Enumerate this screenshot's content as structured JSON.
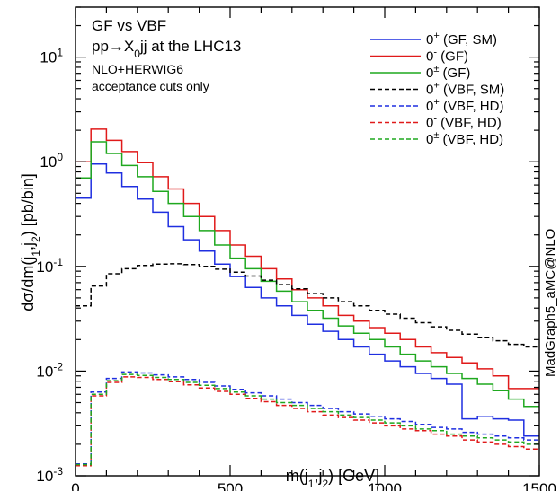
{
  "chart_data": {
    "type": "line",
    "step": true,
    "xlabel": "m(j1,j2)   [GeV]",
    "ylabel": "dσ/dm(j1,j2)   [pb/bin]",
    "xlim": [
      0,
      1500
    ],
    "ylim": [
      0.001,
      30
    ],
    "yscale": "log",
    "xticks": [
      0,
      500,
      1000,
      1500
    ],
    "ytick_labels": [
      "10-3",
      "10-2",
      "10-1",
      "100",
      "101"
    ],
    "annotations": [
      "GF vs VBF",
      "pp→X0jj   at the LHC13",
      "NLO+HERWIG6",
      "acceptance cuts only"
    ],
    "side_label": "MadGraph5_aMC@NLO",
    "legend_placement": "top-right",
    "bin_edges": [
      0,
      50,
      100,
      150,
      200,
      250,
      300,
      350,
      400,
      450,
      500,
      550,
      600,
      650,
      700,
      750,
      800,
      850,
      900,
      950,
      1000,
      1050,
      1100,
      1150,
      1200,
      1250,
      1300,
      1350,
      1400,
      1450,
      1500
    ],
    "series": [
      {
        "name": "0+ (GF, SM)",
        "color": "#1f2fe0",
        "dash": "solid",
        "values": [
          0.45,
          0.95,
          0.78,
          0.58,
          0.44,
          0.33,
          0.24,
          0.18,
          0.14,
          0.105,
          0.08,
          0.063,
          0.05,
          0.042,
          0.034,
          0.028,
          0.024,
          0.02,
          0.017,
          0.0145,
          0.0125,
          0.011,
          0.0095,
          0.0085,
          0.0075,
          0.0035,
          0.0037,
          0.0035,
          0.0034,
          0.0024
        ]
      },
      {
        "name": "0- (GF)",
        "color": "#e01a1a",
        "dash": "solid",
        "values": [
          1.0,
          2.05,
          1.6,
          1.25,
          0.98,
          0.72,
          0.55,
          0.4,
          0.3,
          0.22,
          0.16,
          0.125,
          0.095,
          0.076,
          0.06,
          0.05,
          0.042,
          0.034,
          0.03,
          0.026,
          0.023,
          0.02,
          0.017,
          0.015,
          0.0135,
          0.012,
          0.0105,
          0.009,
          0.0068,
          0.0068
        ]
      },
      {
        "name": "0± (GF)",
        "color": "#1fa81f",
        "dash": "solid",
        "values": [
          0.7,
          1.55,
          1.2,
          0.92,
          0.72,
          0.52,
          0.4,
          0.3,
          0.22,
          0.16,
          0.12,
          0.095,
          0.072,
          0.058,
          0.046,
          0.038,
          0.032,
          0.027,
          0.023,
          0.02,
          0.017,
          0.0145,
          0.0125,
          0.011,
          0.0095,
          0.0085,
          0.0075,
          0.0065,
          0.0054,
          0.0046
        ]
      },
      {
        "name": "0+ (VBF, SM)",
        "color": "#000000",
        "dash": "dashed",
        "values": [
          0.042,
          0.065,
          0.085,
          0.095,
          0.102,
          0.105,
          0.106,
          0.104,
          0.1,
          0.094,
          0.088,
          0.081,
          0.074,
          0.067,
          0.061,
          0.055,
          0.05,
          0.046,
          0.042,
          0.038,
          0.035,
          0.032,
          0.029,
          0.0265,
          0.0245,
          0.0225,
          0.021,
          0.0195,
          0.018,
          0.017
        ]
      },
      {
        "name": "0+ (VBF, HD)",
        "color": "#1f2fe0",
        "dash": "dashed",
        "values": [
          0.0013,
          0.0063,
          0.0085,
          0.0098,
          0.0096,
          0.0092,
          0.0088,
          0.0083,
          0.0078,
          0.0072,
          0.0067,
          0.0062,
          0.0058,
          0.0054,
          0.005,
          0.0047,
          0.0044,
          0.0041,
          0.0039,
          0.0037,
          0.0035,
          0.0033,
          0.0031,
          0.0029,
          0.0028,
          0.0026,
          0.0025,
          0.0024,
          0.0023,
          0.0022
        ]
      },
      {
        "name": "0- (VBF, HD)",
        "color": "#e01a1a",
        "dash": "dashed",
        "values": [
          0.00125,
          0.0058,
          0.0078,
          0.0088,
          0.0087,
          0.0083,
          0.0079,
          0.0074,
          0.0069,
          0.0064,
          0.006,
          0.0055,
          0.0051,
          0.0047,
          0.0044,
          0.0041,
          0.0038,
          0.0036,
          0.0034,
          0.0032,
          0.003,
          0.0028,
          0.0027,
          0.0025,
          0.0024,
          0.0022,
          0.0021,
          0.002,
          0.0019,
          0.0018
        ]
      },
      {
        "name": "0± (VBF, HD)",
        "color": "#1fa81f",
        "dash": "dashed",
        "values": [
          0.00128,
          0.006,
          0.0081,
          0.0093,
          0.0091,
          0.0087,
          0.0083,
          0.0078,
          0.0073,
          0.0068,
          0.0063,
          0.0058,
          0.0054,
          0.005,
          0.0047,
          0.0044,
          0.0041,
          0.0038,
          0.0036,
          0.0034,
          0.0032,
          0.003,
          0.0028,
          0.0027,
          0.0025,
          0.0024,
          0.0023,
          0.0022,
          0.0021,
          0.002
        ]
      }
    ]
  }
}
